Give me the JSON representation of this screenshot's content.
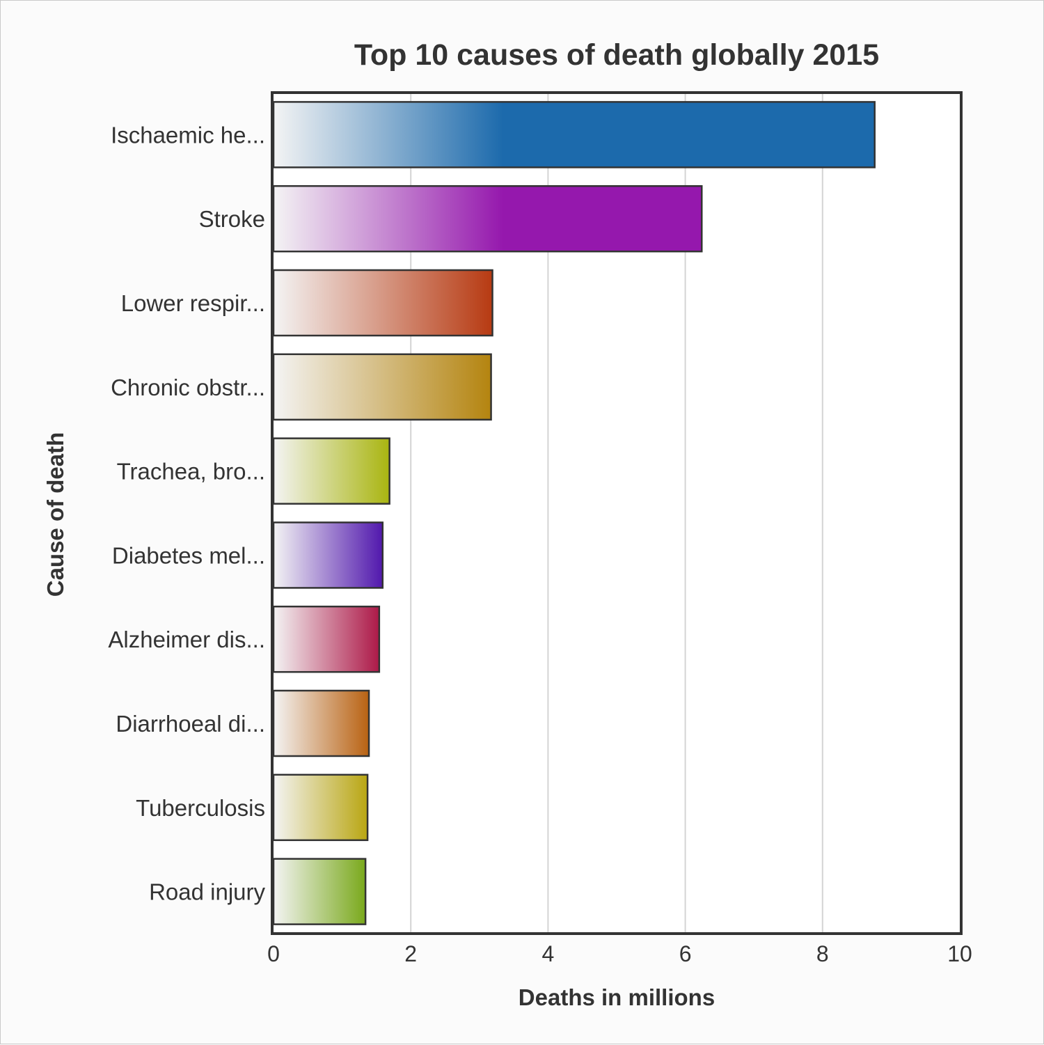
{
  "chart_data": {
    "type": "bar",
    "orientation": "horizontal",
    "title": "Top 10 causes of death globally 2015",
    "xlabel": "Deaths in millions",
    "ylabel": "Cause of death",
    "xlim": [
      0,
      10
    ],
    "xticks": [
      0,
      2,
      4,
      6,
      8,
      10
    ],
    "grid": "vertical",
    "categories": [
      "Ischaemic he...",
      "Stroke",
      "Lower respir...",
      "Chronic obstr...",
      "Trachea, bro...",
      "Diabetes mel...",
      "Alzheimer dis...",
      "Diarrhoeal di...",
      "Tuberculosis",
      "Road injury"
    ],
    "values": [
      8.76,
      6.24,
      3.19,
      3.17,
      1.69,
      1.59,
      1.54,
      1.39,
      1.37,
      1.34
    ],
    "colors": [
      "#1c6aac",
      "#9518ad",
      "#b73a12",
      "#b4840f",
      "#a9b510",
      "#5118ad",
      "#ad1948",
      "#b96212",
      "#b9a612",
      "#7aa91c"
    ]
  }
}
